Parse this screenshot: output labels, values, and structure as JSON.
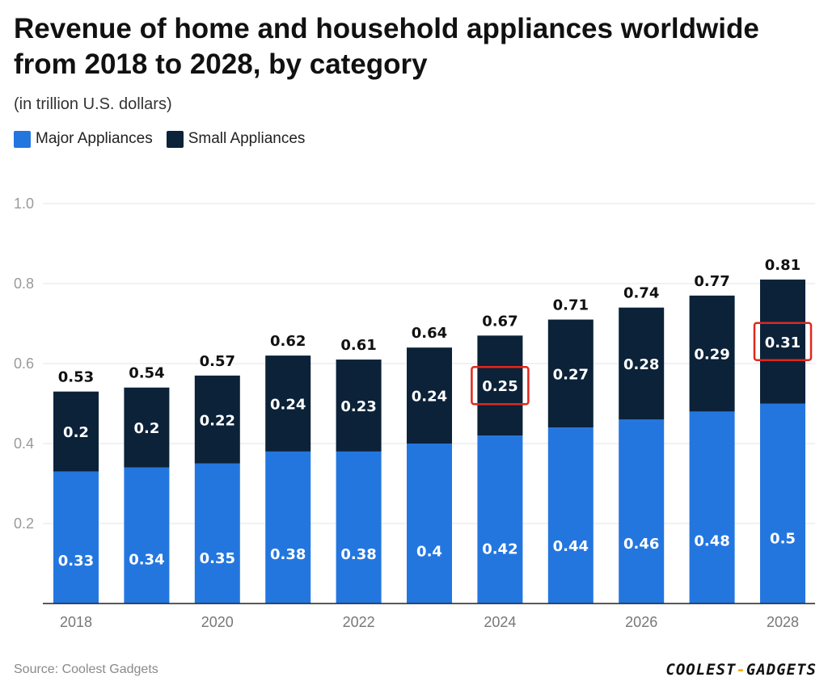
{
  "chart_data": {
    "type": "bar",
    "stacked": true,
    "title": "Revenue of home and household appliances worldwide from 2018 to 2028, by category",
    "subtitle": "(in trillion U.S. dollars)",
    "categories": [
      "2018",
      "2019",
      "2020",
      "2021",
      "2022",
      "2023",
      "2024",
      "2025",
      "2026",
      "2027",
      "2028"
    ],
    "x_tick_labels": [
      "2018",
      "",
      "2020",
      "",
      "2022",
      "",
      "2024",
      "",
      "2026",
      "",
      "2028"
    ],
    "series": [
      {
        "name": "Major Appliances",
        "color": "#2476df",
        "values": [
          0.33,
          0.34,
          0.35,
          0.38,
          0.38,
          0.4,
          0.42,
          0.44,
          0.46,
          0.48,
          0.5
        ],
        "labels": [
          "0.33",
          "0.34",
          "0.35",
          "0.38",
          "0.38",
          "0.4",
          "0.42",
          "0.44",
          "0.46",
          "0.48",
          "0.5"
        ]
      },
      {
        "name": "Small Appliances",
        "color": "#0b2239",
        "values": [
          0.2,
          0.2,
          0.22,
          0.24,
          0.23,
          0.24,
          0.25,
          0.27,
          0.28,
          0.29,
          0.31
        ],
        "labels": [
          "0.2",
          "0.2",
          "0.22",
          "0.24",
          "0.23",
          "0.24",
          "0.25",
          "0.27",
          "0.28",
          "0.29",
          "0.31"
        ]
      }
    ],
    "totals": [
      0.53,
      0.54,
      0.57,
      0.62,
      0.61,
      0.64,
      0.67,
      0.71,
      0.74,
      0.77,
      0.81
    ],
    "total_labels": [
      "0.53",
      "0.54",
      "0.57",
      "0.62",
      "0.61",
      "0.64",
      "0.67",
      "0.71",
      "0.74",
      "0.77",
      "0.81"
    ],
    "ylim": [
      0,
      1.0
    ],
    "y_ticks": [
      0.2,
      0.4,
      0.6,
      0.8,
      1.0
    ],
    "y_tick_labels": [
      "0.2",
      "0.4",
      "0.6",
      "0.8",
      "1.0"
    ],
    "grid": true,
    "legend_position": "top-left",
    "highlighted_segments": [
      {
        "category": "2024",
        "series": "Small Appliances"
      },
      {
        "category": "2028",
        "series": "Small Appliances"
      }
    ],
    "highlight_color": "#e0271c",
    "source": "Source: Coolest Gadgets"
  },
  "branding": {
    "logo_left": "COOLEST",
    "logo_dash": "-",
    "logo_right": "GADGETS"
  }
}
